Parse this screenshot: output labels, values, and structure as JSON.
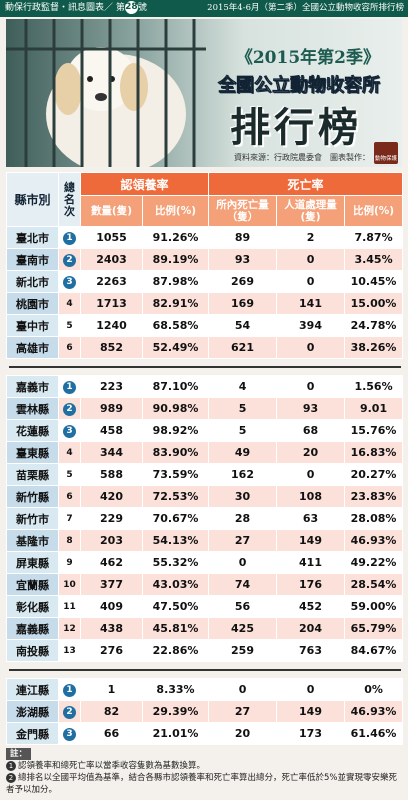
{
  "header": {
    "series": "動保行政監督・訊息圖表／ 第",
    "issue": "28",
    "issue_suffix": "號",
    "period": "2015年4-6月（第二季）全國公立動物收容所排行榜"
  },
  "banner": {
    "year": "《2015年第2季》",
    "subtitle": "全國公立動物收容所",
    "title": "排行榜",
    "source": "資料來源：行政院農委會　圖表製作：",
    "logo": "動物保護"
  },
  "table": {
    "columns": {
      "city": "縣市別",
      "rank": "總名次",
      "adoption": "認領養率",
      "adoption_count": "數量(隻)",
      "adoption_ratio": "比例(%)",
      "death": "死亡率",
      "shelter_death": "所內死亡量（隻）",
      "euthanasia": "人道處理量(隻)",
      "death_ratio": "比例(%)"
    },
    "groups": [
      [
        [
          "臺北市",
          "1",
          "1055",
          "91.26%",
          "89",
          "2",
          "7.87%"
        ],
        [
          "臺南市",
          "2",
          "2403",
          "89.19%",
          "93",
          "0",
          "3.45%"
        ],
        [
          "新北市",
          "3",
          "2263",
          "87.98%",
          "269",
          "0",
          "10.45%"
        ],
        [
          "桃園市",
          "4",
          "1713",
          "82.91%",
          "169",
          "141",
          "15.00%"
        ],
        [
          "臺中市",
          "5",
          "1240",
          "68.58%",
          "54",
          "394",
          "24.78%"
        ],
        [
          "高雄市",
          "6",
          "852",
          "52.49%",
          "621",
          "0",
          "38.26%"
        ]
      ],
      [
        [
          "嘉義市",
          "1",
          "223",
          "87.10%",
          "4",
          "0",
          "1.56%"
        ],
        [
          "雲林縣",
          "2",
          "989",
          "90.98%",
          "5",
          "93",
          "9.01"
        ],
        [
          "花蓮縣",
          "3",
          "458",
          "98.92%",
          "5",
          "68",
          "15.76%"
        ],
        [
          "臺東縣",
          "4",
          "344",
          "83.90%",
          "49",
          "20",
          "16.83%"
        ],
        [
          "苗栗縣",
          "5",
          "588",
          "73.59%",
          "162",
          "0",
          "20.27%"
        ],
        [
          "新竹縣",
          "6",
          "420",
          "72.53%",
          "30",
          "108",
          "23.83%"
        ],
        [
          "新竹市",
          "7",
          "229",
          "70.67%",
          "28",
          "63",
          "28.08%"
        ],
        [
          "基隆市",
          "8",
          "203",
          "54.13%",
          "27",
          "149",
          "46.93%"
        ],
        [
          "屏東縣",
          "9",
          "462",
          "55.32%",
          "0",
          "411",
          "49.22%"
        ],
        [
          "宜蘭縣",
          "10",
          "377",
          "43.03%",
          "74",
          "176",
          "28.54%"
        ],
        [
          "彰化縣",
          "11",
          "409",
          "47.50%",
          "56",
          "452",
          "59.00%"
        ],
        [
          "嘉義縣",
          "12",
          "438",
          "45.81%",
          "425",
          "204",
          "65.79%"
        ],
        [
          "南投縣",
          "13",
          "276",
          "22.86%",
          "259",
          "763",
          "84.67%"
        ]
      ],
      [
        [
          "連江縣",
          "1",
          "1",
          "8.33%",
          "0",
          "0",
          "0%"
        ],
        [
          "澎湖縣",
          "2",
          "82",
          "29.39%",
          "27",
          "149",
          "46.93%"
        ],
        [
          "金門縣",
          "3",
          "66",
          "21.01%",
          "20",
          "173",
          "61.46%"
        ]
      ]
    ]
  },
  "notes": {
    "label": "註：",
    "items": [
      {
        "num": "1",
        "text": "認領養率和總死亡率以當季收容隻數為基數換算。"
      },
      {
        "num": "2",
        "text": "總排名以全國平均值為基準，結合各縣市認領養率和死亡率算出總分，死亡率低於5%並實現零安樂死者予以加分。"
      }
    ]
  }
}
